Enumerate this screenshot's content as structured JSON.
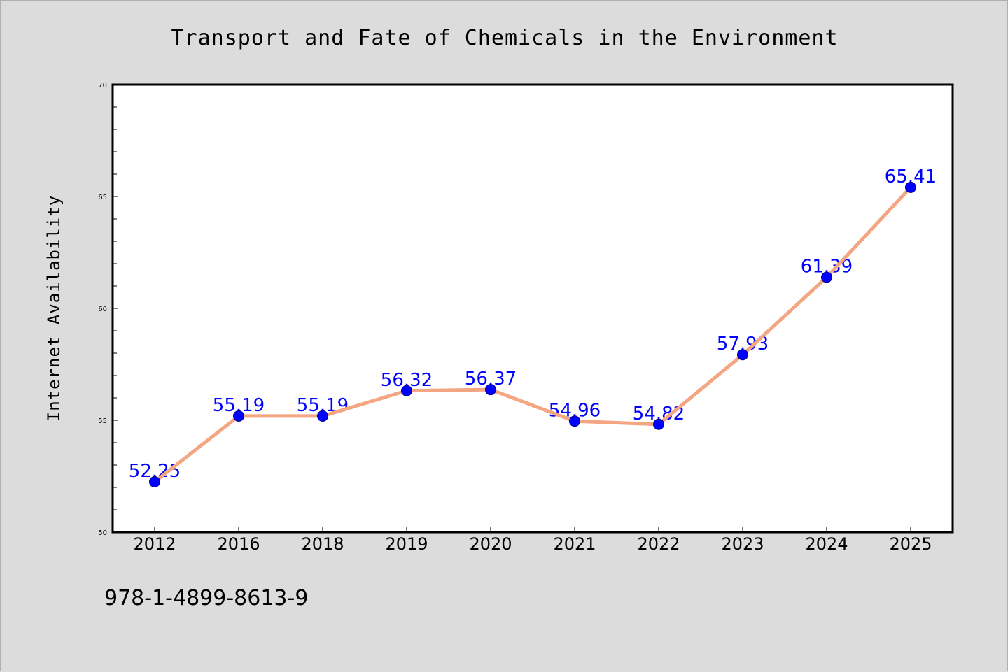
{
  "colors": {
    "background": "#dcdcdc",
    "plot_area": "#ffffff",
    "line": "#f4a582",
    "marker": "#0000ff",
    "data_label": "#0000ff"
  },
  "footer": {
    "isbn": "978-1-4899-8613-9"
  },
  "chart_data": {
    "type": "line",
    "title": "Transport and Fate of Chemicals in the Environment",
    "xlabel": "",
    "ylabel": "Internet Availability",
    "categories": [
      "2012",
      "2016",
      "2018",
      "2019",
      "2020",
      "2021",
      "2022",
      "2023",
      "2024",
      "2025"
    ],
    "values": [
      52.25,
      55.19,
      55.19,
      56.32,
      56.37,
      54.96,
      54.82,
      57.93,
      61.39,
      65.41
    ],
    "data_labels": [
      "52.25",
      "55.19",
      "55.19",
      "56.32",
      "56.37",
      "54.96",
      "54.82",
      "57.93",
      "61.39",
      "65.41"
    ],
    "ylim": [
      50,
      70
    ],
    "yticks": [
      "50",
      "55",
      "60",
      "65",
      "70"
    ],
    "grid": false,
    "legend": "none",
    "marker": "circle"
  }
}
